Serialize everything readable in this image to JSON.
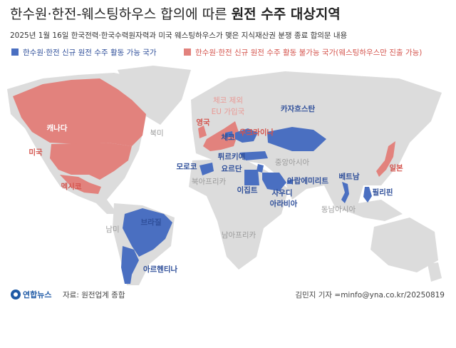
{
  "header": {
    "title": {
      "light": "한수원·한전-웨스팅하우스 합의에 따른 ",
      "bold": "원전 수주 대상지역"
    },
    "subtitle": "2025년 1월 16일 한국전력·한국수력원자력과 미국 웨스팅하우스가 맺은 지식재산권 분쟁 종료 합의문 내용"
  },
  "legend": [
    {
      "label": "한수원·한전 신규 원전 수주 활동 가능 국가",
      "color": "#4a6fc1"
    },
    {
      "label": "한수원·한전 신규 원전 수주 활동 불가능 국가(웨스팅하우스만 진출 가능)",
      "color": "#e2827d"
    }
  ],
  "map_labels": [
    "캐나다",
    "미국",
    "멕시코",
    "북미",
    "남미",
    "브라질",
    "아르헨티나",
    [
      "체코 제외",
      "EU 가입국"
    ],
    "영국",
    "체코",
    "우크라이나",
    "카자흐스탄",
    "튀르키예",
    "요르단",
    "모로코",
    "북아프리카",
    "이집트",
    "중앙아시아",
    "아랍에미리트",
    [
      "사우디",
      "아라비아"
    ],
    "베트남",
    "필리핀",
    "일본",
    "동남아시아",
    "남아프리카"
  ],
  "footer": {
    "logo": "연합뉴스",
    "source": "자료: 원전업계 종합",
    "credit": "김민지 기자 =minfo@yna.co.kr/20250819"
  }
}
